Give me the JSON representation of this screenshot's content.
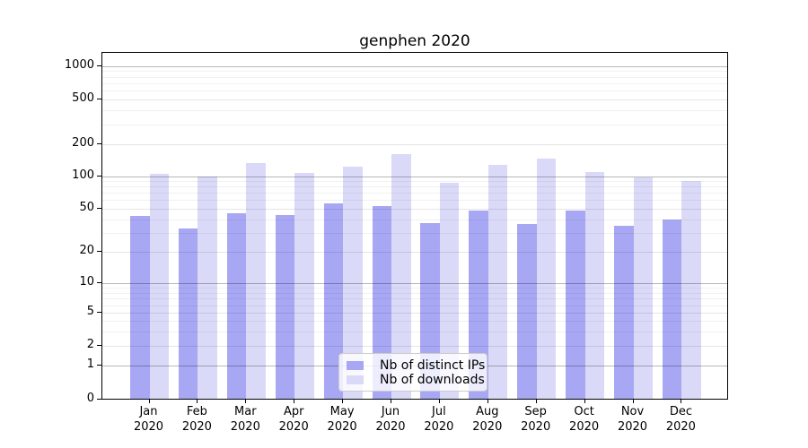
{
  "chart_data": {
    "type": "bar",
    "title": "genphen 2020",
    "year": "2020",
    "months": [
      "Jan",
      "Feb",
      "Mar",
      "Apr",
      "May",
      "Jun",
      "Jul",
      "Aug",
      "Sep",
      "Oct",
      "Nov",
      "Dec"
    ],
    "series": [
      {
        "name": "Nb of distinct IPs",
        "color": "#a7a7f4",
        "values": [
          43,
          33,
          45,
          44,
          56,
          53,
          37,
          48,
          36,
          48,
          35,
          40
        ]
      },
      {
        "name": "Nb of downloads",
        "color": "#dadaf8",
        "values": [
          106,
          100,
          133,
          108,
          123,
          161,
          87,
          127,
          146,
          110,
          98,
          90
        ]
      }
    ],
    "xlabel": "",
    "ylabel": "",
    "yscale": "symlog",
    "yticks": [
      0,
      1,
      2,
      5,
      10,
      20,
      50,
      100,
      200,
      500,
      1000
    ],
    "ylim": [
      0,
      1300
    ],
    "grid": "both",
    "legend_position": "lower center"
  }
}
